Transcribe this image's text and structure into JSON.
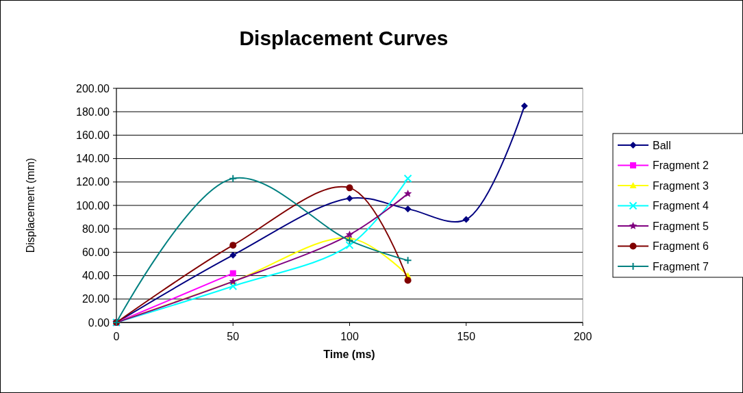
{
  "chart_data": {
    "type": "line",
    "title": "Displacement Curves",
    "xlabel": "Time (ms)",
    "ylabel": "Displacement (mm)",
    "x": [
      0,
      50,
      100,
      125,
      150,
      175
    ],
    "xlim": [
      0,
      200
    ],
    "xticks": [
      0,
      50,
      100,
      150,
      200
    ],
    "ylim": [
      0,
      200
    ],
    "yticks": [
      {
        "value": 0,
        "label": "0.00"
      },
      {
        "value": 20,
        "label": "20.00"
      },
      {
        "value": 40,
        "label": "40.00"
      },
      {
        "value": 60,
        "label": "60.00"
      },
      {
        "value": 80,
        "label": "80.00"
      },
      {
        "value": 100,
        "label": "100.00"
      },
      {
        "value": 120,
        "label": "120.00"
      },
      {
        "value": 140,
        "label": "140.00"
      },
      {
        "value": 160,
        "label": "160.00"
      },
      {
        "value": 180,
        "label": "180.00"
      },
      {
        "value": 200,
        "label": "200.00"
      }
    ],
    "grid": "y",
    "legend": "right",
    "series": [
      {
        "name": "Ball",
        "color": "#000080",
        "marker": "diamond",
        "values": [
          0,
          57.5,
          106,
          97,
          88,
          185
        ]
      },
      {
        "name": "Fragment 2",
        "color": "#ff00ff",
        "marker": "square",
        "x": [
          0,
          50
        ],
        "values": [
          0,
          42
        ]
      },
      {
        "name": "Fragment 3",
        "color": "#ffff00",
        "marker": "triangle",
        "x": [
          0,
          50,
          100,
          125
        ],
        "values": [
          0,
          35,
          72,
          40
        ]
      },
      {
        "name": "Fragment 4",
        "color": "#00ffff",
        "marker": "cross",
        "x": [
          0,
          50,
          100,
          125
        ],
        "values": [
          0,
          31,
          66,
          123
        ]
      },
      {
        "name": "Fragment 5",
        "color": "#800080",
        "marker": "star",
        "x": [
          0,
          50,
          100,
          125
        ],
        "values": [
          0,
          35,
          75,
          110
        ]
      },
      {
        "name": "Fragment 6",
        "color": "#800000",
        "marker": "circle",
        "x": [
          0,
          50,
          100,
          125
        ],
        "values": [
          0,
          66,
          115,
          36
        ]
      },
      {
        "name": "Fragment 7",
        "color": "#008080",
        "marker": "plus",
        "x": [
          0,
          50,
          100,
          125
        ],
        "values": [
          0,
          123,
          70,
          53
        ]
      }
    ]
  }
}
